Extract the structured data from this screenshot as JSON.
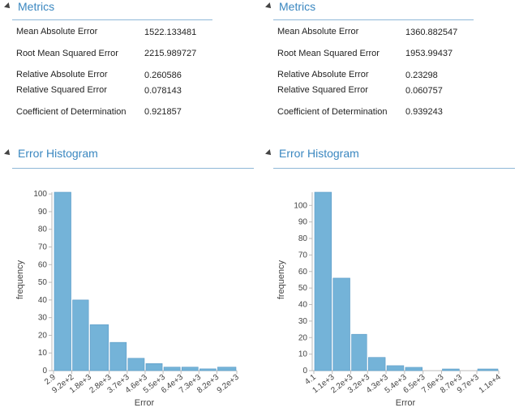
{
  "panels": [
    {
      "metrics_title": "Metrics",
      "metrics": [
        {
          "name": "Mean Absolute Error",
          "value": 1522.133481
        },
        {
          "name": "Root Mean Squared Error",
          "value": 2215.989727
        },
        {
          "name": "Relative Absolute Error",
          "value": 0.260586
        },
        {
          "name": "Relative Squared Error",
          "value": 0.078143
        },
        {
          "name": "Coefficient of Determination",
          "value": 0.921857
        }
      ],
      "histogram_title": "Error Histogram"
    },
    {
      "metrics_title": "Metrics",
      "metrics": [
        {
          "name": "Mean Absolute Error",
          "value": 1360.882547
        },
        {
          "name": "Root Mean Squared Error",
          "value": 1953.99437
        },
        {
          "name": "Relative Absolute Error",
          "value": 0.23298
        },
        {
          "name": "Relative Squared Error",
          "value": 0.060757
        },
        {
          "name": "Coefficient of Determination",
          "value": 0.939243
        }
      ],
      "histogram_title": "Error Histogram"
    }
  ],
  "chart_data": [
    {
      "type": "histogram",
      "xlabel": "Error",
      "ylabel": "frequency",
      "color": "#74b3d8",
      "bins": [
        2.9,
        {
          "value": 920,
          "label": "9.2e+2"
        },
        {
          "value": 1800,
          "label": "1.8e+3"
        },
        {
          "value": 2800,
          "label": "2.8e+3"
        },
        {
          "value": 3700,
          "label": "3.7e+3"
        },
        {
          "value": 4600,
          "label": "4.6e+3"
        },
        {
          "value": 5500,
          "label": "5.5e+3"
        },
        {
          "value": 6400,
          "label": "6.4e+3"
        },
        {
          "value": 7300,
          "label": "7.3e+3"
        },
        {
          "value": 8200,
          "label": "8.2e+3"
        },
        {
          "value": 9200,
          "label": "9.2e+3"
        }
      ],
      "counts": [
        101,
        40,
        26,
        16,
        7,
        4,
        2,
        2,
        1,
        2
      ],
      "xlim": [
        2.9,
        9200
      ],
      "ylim": [
        0,
        101
      ],
      "yticks": [
        0,
        10,
        20,
        30,
        40,
        50,
        60,
        70,
        80,
        90,
        100
      ]
    },
    {
      "type": "histogram",
      "xlabel": "Error",
      "ylabel": "frequency",
      "color": "#74b3d8",
      "bins": [
        4.1,
        {
          "value": 1100,
          "label": "1.1e+3"
        },
        {
          "value": 2200,
          "label": "2.2e+3"
        },
        {
          "value": 3200,
          "label": "3.2e+3"
        },
        {
          "value": 4300,
          "label": "4.3e+3"
        },
        {
          "value": 5400,
          "label": "5.4e+3"
        },
        {
          "value": 6500,
          "label": "6.5e+3"
        },
        {
          "value": 7600,
          "label": "7.6e+3"
        },
        {
          "value": 8700,
          "label": "8.7e+3"
        },
        {
          "value": 9700,
          "label": "9.7e+3"
        },
        {
          "value": 11000,
          "label": "1.1e+4"
        }
      ],
      "counts": [
        108,
        56,
        22,
        8,
        3,
        2,
        0,
        1,
        0,
        1
      ],
      "xlim": [
        4.1,
        11000
      ],
      "ylim": [
        0,
        108
      ],
      "yticks": [
        0,
        10,
        20,
        30,
        40,
        50,
        60,
        70,
        80,
        90,
        100
      ]
    }
  ]
}
